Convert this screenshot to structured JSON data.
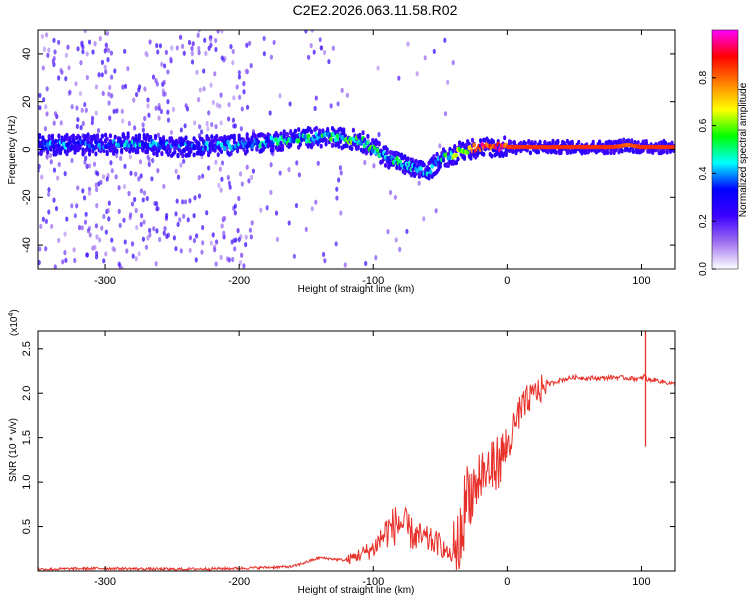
{
  "title": "C2E2.2026.063.11.58.R02",
  "chart_data": [
    {
      "type": "heatmap",
      "xlabel": "Height of straight line (km)",
      "ylabel": "Frequency (Hz)",
      "xlim": [
        -350,
        125
      ],
      "ylim": [
        -50,
        50
      ],
      "xticks": [
        -300,
        -200,
        -100,
        0,
        100
      ],
      "yticks": [
        -40,
        -20,
        0,
        20,
        40
      ],
      "colorbar": {
        "label": "Normalized spectral amplitude",
        "range": [
          0,
          1
        ],
        "ticks": [
          "0.0",
          "0.2",
          "0.4",
          "0.6",
          "0.8"
        ],
        "tick_values": [
          0,
          0.2,
          0.4,
          0.6,
          0.8
        ],
        "colors": [
          "#ffffff",
          "#a070f0",
          "#3c00ff",
          "#0000ff",
          "#00ffff",
          "#00ff00",
          "#ffff00",
          "#ff8000",
          "#ff0000",
          "#ff00ff"
        ]
      },
      "ridge": {
        "height_km": [
          -345,
          -300,
          -280,
          -250,
          -200,
          -150,
          -130,
          -110,
          -90,
          -70,
          -60,
          -50,
          -40,
          -30,
          -20,
          0,
          20,
          50,
          80,
          90,
          100,
          125
        ],
        "frequency_hz": [
          2,
          2,
          3,
          1,
          2,
          5,
          5,
          4,
          -3,
          -8,
          -10,
          -4,
          -2,
          0,
          1,
          1,
          1,
          1,
          1,
          2,
          1,
          1
        ],
        "amplitude": [
          0.35,
          0.3,
          0.4,
          0.3,
          0.35,
          0.45,
          0.5,
          0.5,
          0.45,
          0.4,
          0.35,
          0.4,
          0.55,
          0.7,
          0.9,
          0.85,
          0.85,
          0.85,
          0.85,
          0.8,
          0.85,
          0.85
        ]
      }
    },
    {
      "type": "line",
      "xlabel": "Height of straight line (km)",
      "ylabel": "SNR (10 * v/v)",
      "y_scale_label": "(x10",
      "y_scale_exp": "4",
      "y_multiplier": 10000,
      "xlim": [
        -350,
        125
      ],
      "ylim": [
        0,
        2.7
      ],
      "xticks": [
        -300,
        -200,
        -100,
        0,
        100
      ],
      "yticks": [
        0.5,
        1.0,
        1.5,
        2.0,
        2.5
      ],
      "ytick_labels": [
        "0.5",
        "1.0",
        "1.5",
        "2.0",
        "2.5"
      ],
      "color": "#e8302a",
      "series": [
        {
          "name": "SNR",
          "x": [
            -350,
            -300,
            -250,
            -200,
            -160,
            -150,
            -140,
            -120,
            -100,
            -90,
            -80,
            -70,
            -60,
            -50,
            -45,
            -40,
            -35,
            -30,
            -25,
            -20,
            -15,
            -10,
            -5,
            0,
            5,
            10,
            15,
            20,
            25,
            30,
            40,
            50,
            60,
            70,
            80,
            90,
            100,
            102,
            104,
            110,
            125
          ],
          "y": [
            0.02,
            0.03,
            0.02,
            0.03,
            0.05,
            0.1,
            0.15,
            0.12,
            0.25,
            0.45,
            0.55,
            0.4,
            0.35,
            0.3,
            0.2,
            0.15,
            0.35,
            0.9,
            0.9,
            1.05,
            1.1,
            1.2,
            1.25,
            1.4,
            1.6,
            1.8,
            1.9,
            2.0,
            2.05,
            2.1,
            2.15,
            2.18,
            2.17,
            2.17,
            2.18,
            2.17,
            2.16,
            2.2,
            2.15,
            2.15,
            2.1
          ]
        }
      ],
      "spikes": [
        {
          "x": 103,
          "y_top": 2.7,
          "y_bottom": 1.4
        }
      ]
    }
  ]
}
